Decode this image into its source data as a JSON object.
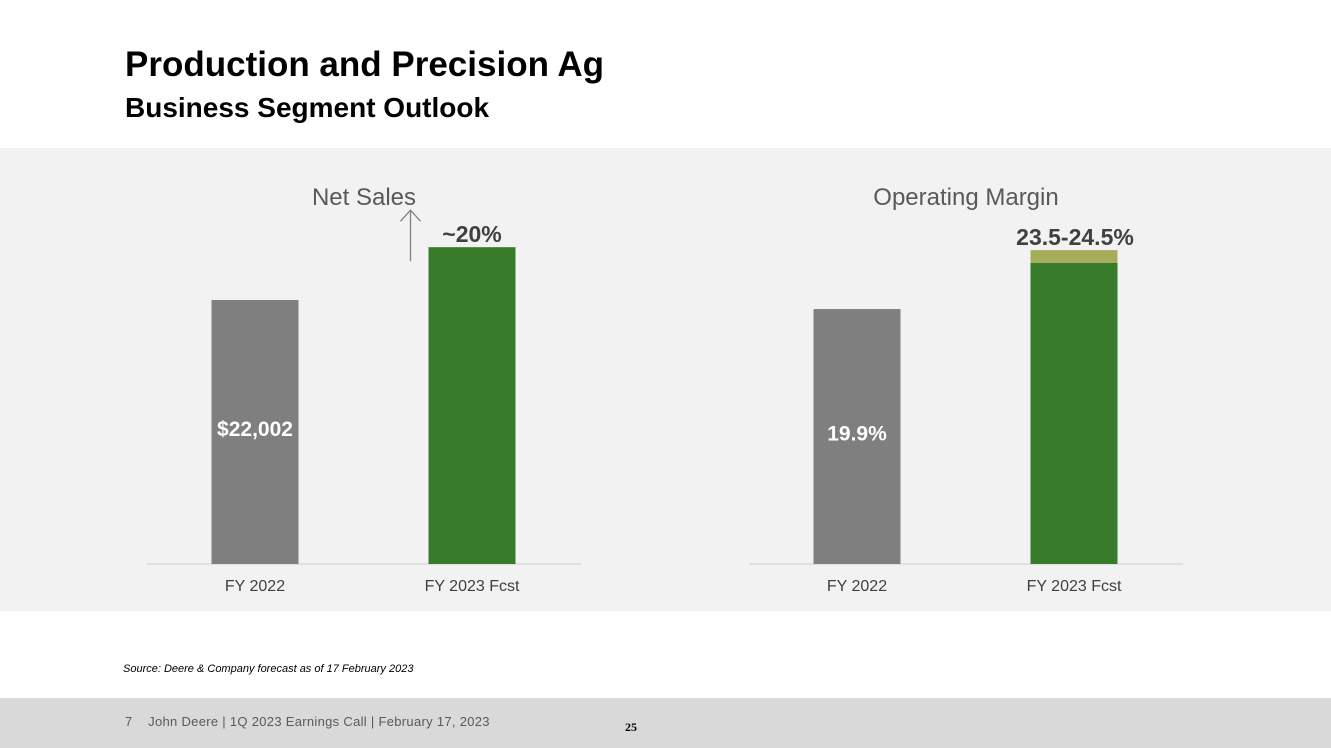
{
  "slide": {
    "title": "Production and Precision Ag",
    "subtitle": "Business Segment Outlook",
    "source": "Source: Deere & Company forecast as of 17 February 2023",
    "footer_text": "7    John Deere | 1Q 2023 Earnings Call | February 17, 2023",
    "page_number": "25"
  },
  "colors": {
    "prior_bar": "#7f7f7f",
    "forecast_bar": "#387c2b",
    "range_bar": "#a5ad5a",
    "panel_bg": "#f2f2f2",
    "axis": "#d9d9d9",
    "title_text": "#595959",
    "arrow": "#808080"
  },
  "chart_data": [
    {
      "type": "bar",
      "title": "Net Sales",
      "categories": [
        "FY 2022",
        "FY 2023 Fcst"
      ],
      "values": [
        22002,
        26402
      ],
      "data_labels": [
        "$22,002",
        "~20%"
      ],
      "annotation": "up-arrow-icon",
      "ylim": [
        0,
        30000
      ],
      "xlabel": "",
      "ylabel": ""
    },
    {
      "type": "bar",
      "title": "Operating Margin",
      "categories": [
        "FY 2022",
        "FY 2023 Fcst"
      ],
      "values": [
        19.9,
        23.5
      ],
      "range": [
        23.5,
        24.5
      ],
      "data_labels": [
        "19.9%",
        "23.5-24.5%"
      ],
      "ylim": [
        0,
        28.1
      ],
      "xlabel": "",
      "ylabel": ""
    }
  ]
}
